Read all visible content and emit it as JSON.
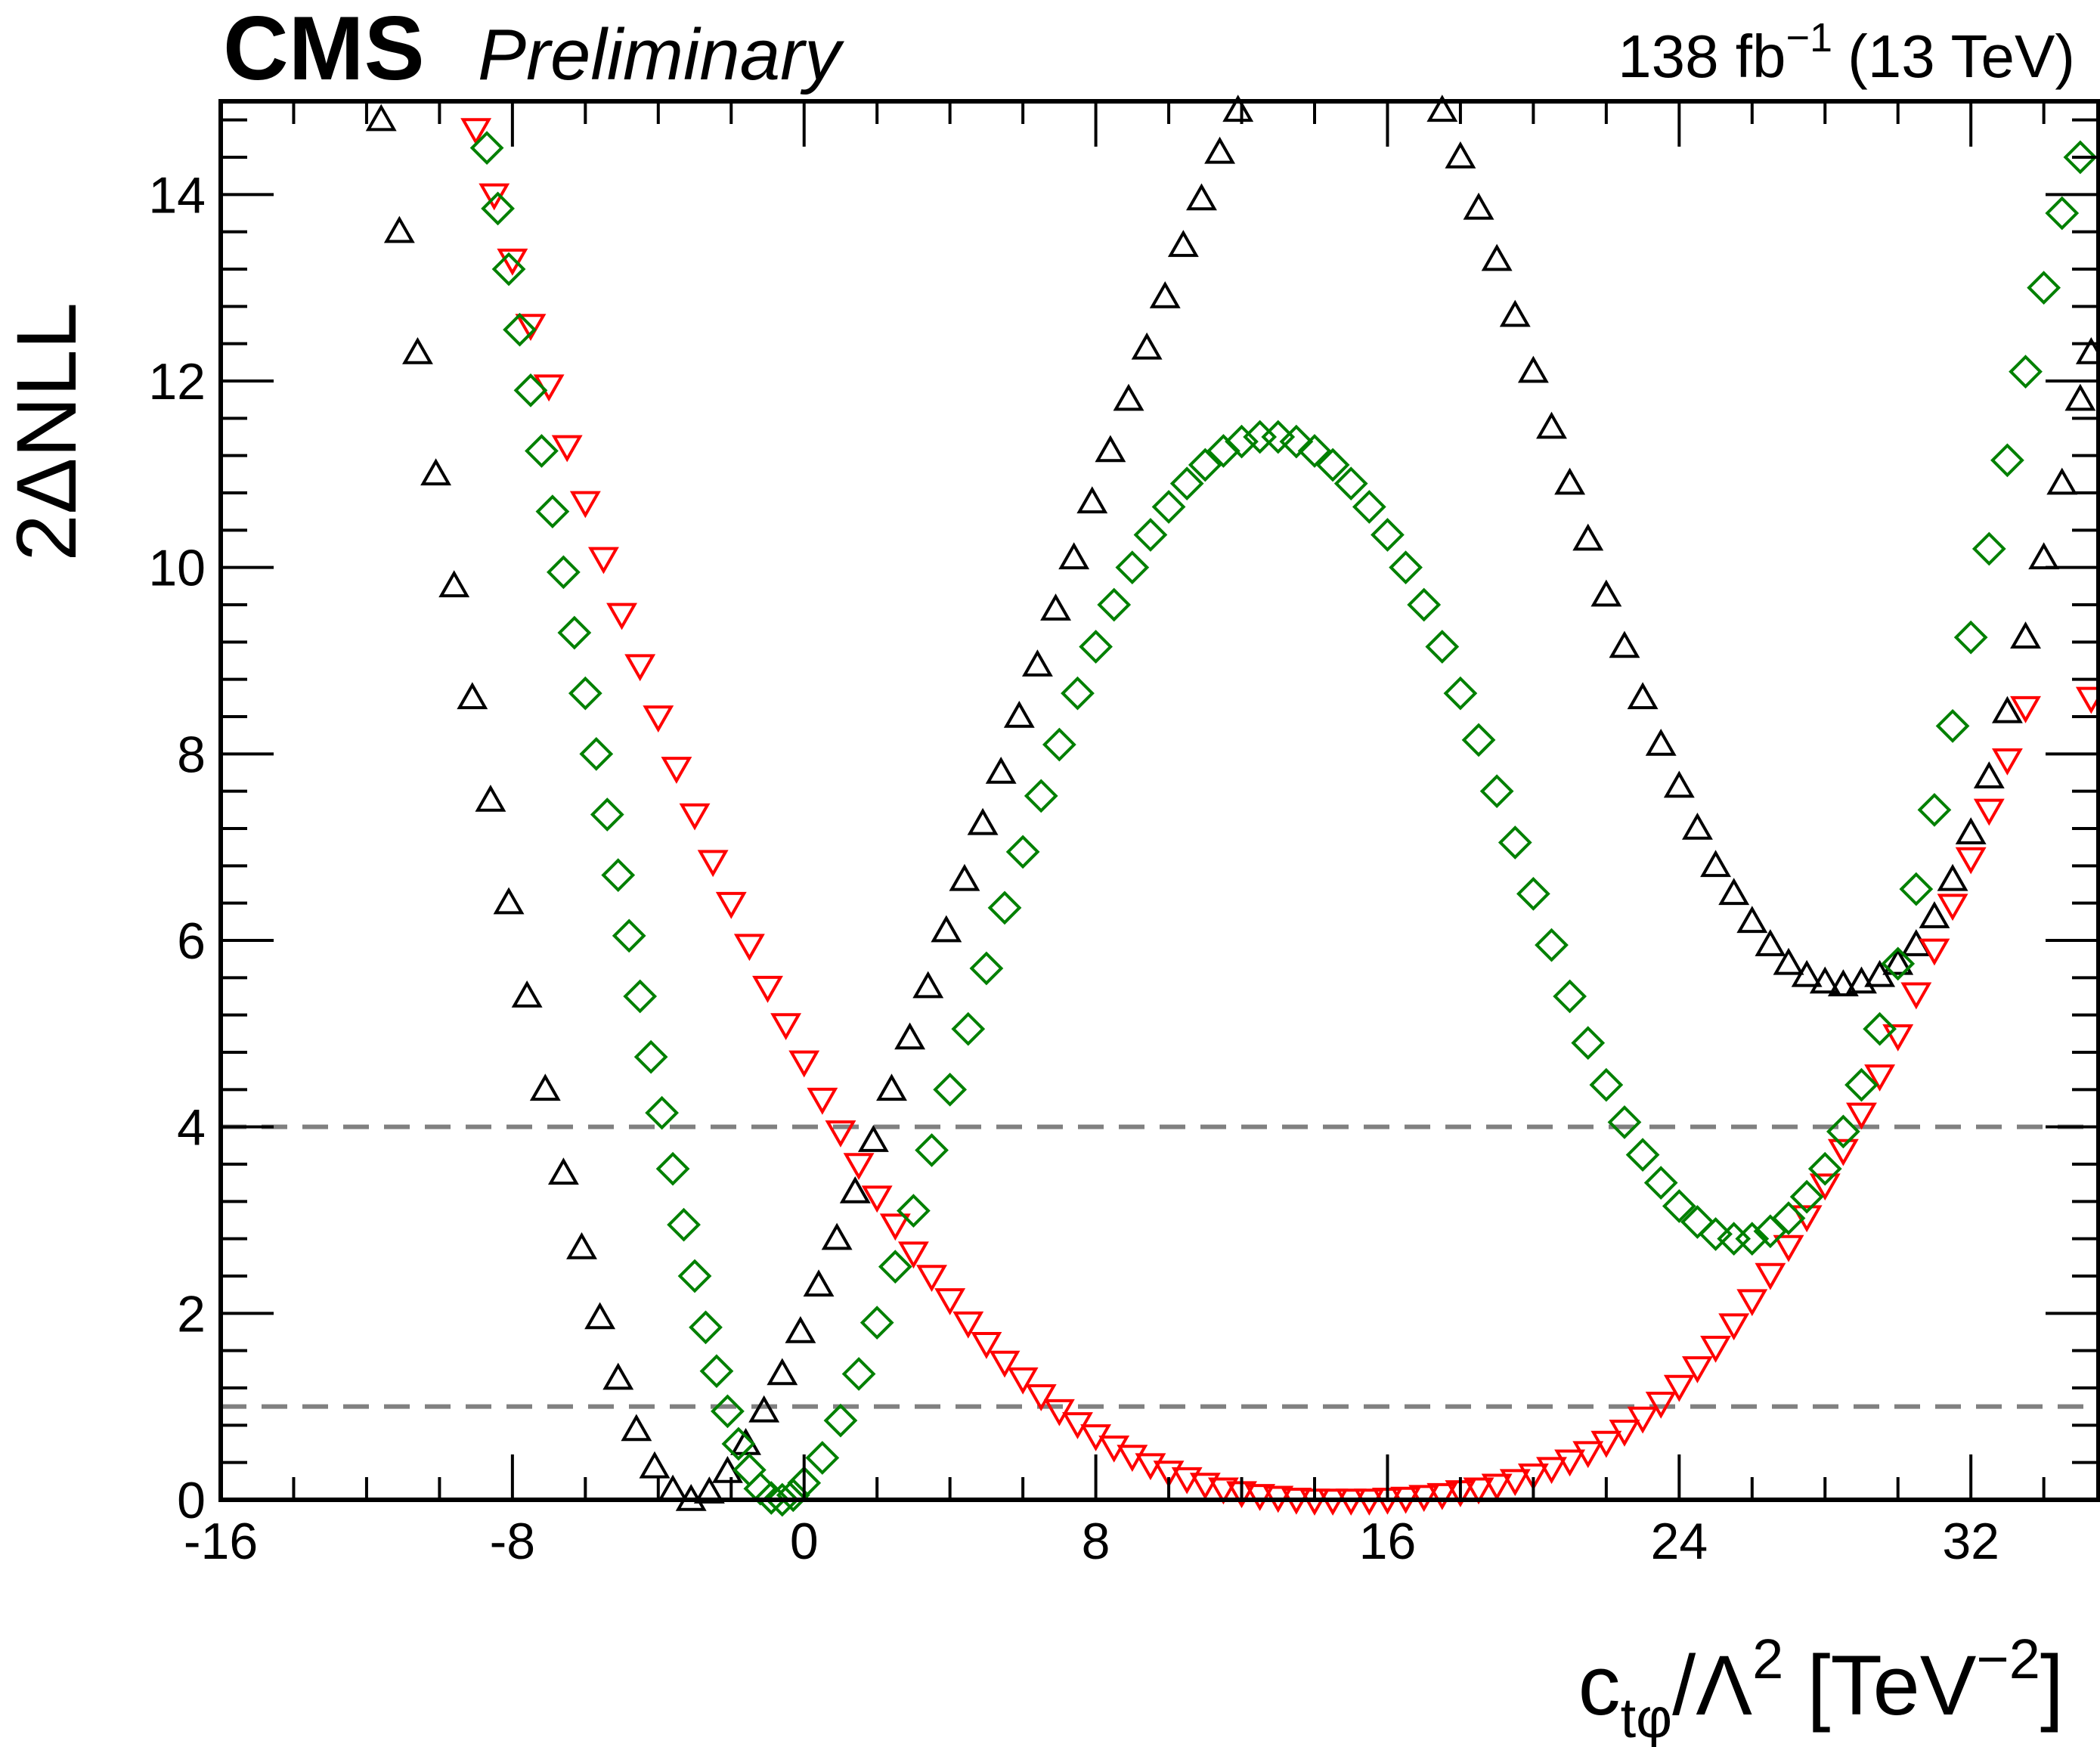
{
  "header": {
    "experiment": "CMS",
    "status": "Preliminary",
    "lumi_value": "138 fb",
    "lumi_exp": "−1",
    "energy": "(13 TeV)"
  },
  "axes": {
    "ylabel": "2ΔNLL",
    "xlabel_main": "c",
    "xlabel_sub": "tφ",
    "xlabel_mid": "/Λ",
    "xlabel_sq": "2",
    "xlabel_unit": " [TeV",
    "xlabel_unit_exp": "−2",
    "xlabel_close": "]"
  },
  "colors": {
    "black_series": "#000000",
    "red_series": "#ff0000",
    "green_series": "#008000",
    "threshold_line": "#808080"
  },
  "chart_data": {
    "type": "scatter",
    "title": "",
    "xlabel": "c_tφ/Λ² [TeV⁻²]",
    "ylabel": "2ΔNLL",
    "xlim": [
      -16,
      35.5
    ],
    "ylim": [
      0,
      15
    ],
    "x_ticks": [
      -16,
      -8,
      0,
      8,
      16,
      24,
      32
    ],
    "x_tick_labels": [
      "-16",
      "-8",
      "0",
      "8",
      "16",
      "24",
      "32"
    ],
    "y_ticks": [
      0,
      2,
      4,
      6,
      8,
      10,
      12,
      14
    ],
    "y_tick_labels": [
      "0",
      "2",
      "4",
      "6",
      "8",
      "10",
      "12",
      "14"
    ],
    "reference_lines": [
      1,
      4
    ],
    "series": [
      {
        "name": "black",
        "marker": "triangle-up",
        "color": "#000000",
        "points": [
          [
            -11.6,
            14.8
          ],
          [
            -11.1,
            13.6
          ],
          [
            -10.6,
            12.3
          ],
          [
            -10.1,
            11.0
          ],
          [
            -9.6,
            9.8
          ],
          [
            -9.1,
            8.6
          ],
          [
            -8.6,
            7.5
          ],
          [
            -8.1,
            6.4
          ],
          [
            -7.6,
            5.4
          ],
          [
            -7.1,
            4.4
          ],
          [
            -6.6,
            3.5
          ],
          [
            -6.1,
            2.7
          ],
          [
            -5.6,
            1.95
          ],
          [
            -5.1,
            1.3
          ],
          [
            -4.6,
            0.75
          ],
          [
            -4.1,
            0.35
          ],
          [
            -3.6,
            0.1
          ],
          [
            -3.1,
            0.0
          ],
          [
            -2.6,
            0.08
          ],
          [
            -2.1,
            0.3
          ],
          [
            -1.6,
            0.6
          ],
          [
            -1.1,
            0.95
          ],
          [
            -0.6,
            1.35
          ],
          [
            -0.1,
            1.8
          ],
          [
            0.4,
            2.3
          ],
          [
            0.9,
            2.8
          ],
          [
            1.4,
            3.3
          ],
          [
            1.9,
            3.85
          ],
          [
            2.4,
            4.4
          ],
          [
            2.9,
            4.95
          ],
          [
            3.4,
            5.5
          ],
          [
            3.9,
            6.1
          ],
          [
            4.4,
            6.65
          ],
          [
            4.9,
            7.25
          ],
          [
            5.4,
            7.8
          ],
          [
            5.9,
            8.4
          ],
          [
            6.4,
            8.95
          ],
          [
            6.9,
            9.55
          ],
          [
            7.4,
            10.1
          ],
          [
            7.9,
            10.7
          ],
          [
            8.4,
            11.25
          ],
          [
            8.9,
            11.8
          ],
          [
            9.4,
            12.35
          ],
          [
            9.9,
            12.9
          ],
          [
            10.4,
            13.45
          ],
          [
            10.9,
            13.95
          ],
          [
            11.4,
            14.45
          ],
          [
            11.9,
            14.9
          ],
          [
            17.5,
            14.9
          ],
          [
            18.0,
            14.4
          ],
          [
            18.5,
            13.85
          ],
          [
            19.0,
            13.3
          ],
          [
            19.5,
            12.7
          ],
          [
            20.0,
            12.1
          ],
          [
            20.5,
            11.5
          ],
          [
            21.0,
            10.9
          ],
          [
            21.5,
            10.3
          ],
          [
            22.0,
            9.7
          ],
          [
            22.5,
            9.15
          ],
          [
            23.0,
            8.6
          ],
          [
            23.5,
            8.1
          ],
          [
            24.0,
            7.65
          ],
          [
            24.5,
            7.2
          ],
          [
            25.0,
            6.8
          ],
          [
            25.5,
            6.5
          ],
          [
            26.0,
            6.2
          ],
          [
            26.5,
            5.95
          ],
          [
            27.0,
            5.75
          ],
          [
            27.5,
            5.62
          ],
          [
            28.0,
            5.55
          ],
          [
            28.5,
            5.52
          ],
          [
            29.0,
            5.55
          ],
          [
            29.5,
            5.62
          ],
          [
            30.0,
            5.75
          ],
          [
            30.5,
            5.95
          ],
          [
            31.0,
            6.25
          ],
          [
            31.5,
            6.65
          ],
          [
            32.0,
            7.15
          ],
          [
            32.5,
            7.75
          ],
          [
            33.0,
            8.45
          ],
          [
            33.5,
            9.25
          ],
          [
            34.0,
            10.1
          ],
          [
            34.5,
            10.9
          ],
          [
            35.0,
            11.8
          ],
          [
            35.3,
            12.3
          ]
        ]
      },
      {
        "name": "red",
        "marker": "triangle-down",
        "color": "#ff0000",
        "points": [
          [
            -9.0,
            14.7
          ],
          [
            -8.5,
            14.0
          ],
          [
            -8.0,
            13.3
          ],
          [
            -7.5,
            12.6
          ],
          [
            -7.0,
            11.95
          ],
          [
            -6.5,
            11.3
          ],
          [
            -6.0,
            10.7
          ],
          [
            -5.5,
            10.1
          ],
          [
            -5.0,
            9.5
          ],
          [
            -4.5,
            8.95
          ],
          [
            -4.0,
            8.4
          ],
          [
            -3.5,
            7.85
          ],
          [
            -3.0,
            7.35
          ],
          [
            -2.5,
            6.85
          ],
          [
            -2.0,
            6.4
          ],
          [
            -1.5,
            5.95
          ],
          [
            -1.0,
            5.5
          ],
          [
            -0.5,
            5.1
          ],
          [
            0.0,
            4.7
          ],
          [
            0.5,
            4.3
          ],
          [
            1.0,
            3.95
          ],
          [
            1.5,
            3.6
          ],
          [
            2.0,
            3.25
          ],
          [
            2.5,
            2.95
          ],
          [
            3.0,
            2.65
          ],
          [
            3.5,
            2.4
          ],
          [
            4.0,
            2.15
          ],
          [
            4.5,
            1.9
          ],
          [
            5.0,
            1.68
          ],
          [
            5.5,
            1.48
          ],
          [
            6.0,
            1.3
          ],
          [
            6.5,
            1.12
          ],
          [
            7.0,
            0.96
          ],
          [
            7.5,
            0.82
          ],
          [
            8.0,
            0.69
          ],
          [
            8.5,
            0.57
          ],
          [
            9.0,
            0.47
          ],
          [
            9.5,
            0.38
          ],
          [
            10.0,
            0.3
          ],
          [
            10.5,
            0.23
          ],
          [
            11.0,
            0.17
          ],
          [
            11.5,
            0.12
          ],
          [
            12.0,
            0.08
          ],
          [
            12.5,
            0.05
          ],
          [
            13.0,
            0.03
          ],
          [
            13.5,
            0.01
          ],
          [
            14.0,
            0.0
          ],
          [
            14.5,
            0.0
          ],
          [
            15.0,
            0.0
          ],
          [
            15.5,
            0.0
          ],
          [
            16.0,
            0.01
          ],
          [
            16.5,
            0.02
          ],
          [
            17.0,
            0.04
          ],
          [
            17.5,
            0.06
          ],
          [
            18.0,
            0.09
          ],
          [
            18.5,
            0.12
          ],
          [
            19.0,
            0.16
          ],
          [
            19.5,
            0.21
          ],
          [
            20.0,
            0.27
          ],
          [
            20.5,
            0.34
          ],
          [
            21.0,
            0.42
          ],
          [
            21.5,
            0.51
          ],
          [
            22.0,
            0.62
          ],
          [
            22.5,
            0.74
          ],
          [
            23.0,
            0.88
          ],
          [
            23.5,
            1.04
          ],
          [
            24.0,
            1.22
          ],
          [
            24.5,
            1.42
          ],
          [
            25.0,
            1.64
          ],
          [
            25.5,
            1.88
          ],
          [
            26.0,
            2.14
          ],
          [
            26.5,
            2.42
          ],
          [
            27.0,
            2.72
          ],
          [
            27.5,
            3.04
          ],
          [
            28.0,
            3.38
          ],
          [
            28.5,
            3.75
          ],
          [
            29.0,
            4.14
          ],
          [
            29.5,
            4.55
          ],
          [
            30.0,
            4.98
          ],
          [
            30.5,
            5.43
          ],
          [
            31.0,
            5.9
          ],
          [
            31.5,
            6.38
          ],
          [
            32.0,
            6.88
          ],
          [
            32.5,
            7.4
          ],
          [
            33.0,
            7.94
          ],
          [
            33.5,
            8.5
          ],
          [
            35.3,
            8.6
          ]
        ]
      },
      {
        "name": "green",
        "marker": "diamond",
        "color": "#008000",
        "points": [
          [
            -8.7,
            14.5
          ],
          [
            -8.4,
            13.85
          ],
          [
            -8.1,
            13.2
          ],
          [
            -7.8,
            12.55
          ],
          [
            -7.5,
            11.9
          ],
          [
            -7.2,
            11.25
          ],
          [
            -6.9,
            10.6
          ],
          [
            -6.6,
            9.95
          ],
          [
            -6.3,
            9.3
          ],
          [
            -6.0,
            8.65
          ],
          [
            -5.7,
            8.0
          ],
          [
            -5.4,
            7.35
          ],
          [
            -5.1,
            6.7
          ],
          [
            -4.8,
            6.05
          ],
          [
            -4.5,
            5.4
          ],
          [
            -4.2,
            4.75
          ],
          [
            -3.9,
            4.15
          ],
          [
            -3.6,
            3.55
          ],
          [
            -3.3,
            2.95
          ],
          [
            -3.0,
            2.4
          ],
          [
            -2.7,
            1.85
          ],
          [
            -2.4,
            1.38
          ],
          [
            -2.1,
            0.95
          ],
          [
            -1.8,
            0.6
          ],
          [
            -1.5,
            0.32
          ],
          [
            -1.2,
            0.12
          ],
          [
            -0.9,
            0.02
          ],
          [
            -0.6,
            0.0
          ],
          [
            -0.3,
            0.05
          ],
          [
            0.0,
            0.18
          ],
          [
            0.5,
            0.45
          ],
          [
            1.0,
            0.85
          ],
          [
            1.5,
            1.35
          ],
          [
            2.0,
            1.9
          ],
          [
            2.5,
            2.5
          ],
          [
            3.0,
            3.1
          ],
          [
            3.5,
            3.75
          ],
          [
            4.0,
            4.4
          ],
          [
            4.5,
            5.05
          ],
          [
            5.0,
            5.7
          ],
          [
            5.5,
            6.35
          ],
          [
            6.0,
            6.95
          ],
          [
            6.5,
            7.55
          ],
          [
            7.0,
            8.1
          ],
          [
            7.5,
            8.65
          ],
          [
            8.0,
            9.15
          ],
          [
            8.5,
            9.6
          ],
          [
            9.0,
            10.0
          ],
          [
            9.5,
            10.35
          ],
          [
            10.0,
            10.65
          ],
          [
            10.5,
            10.9
          ],
          [
            11.0,
            11.1
          ],
          [
            11.5,
            11.25
          ],
          [
            12.0,
            11.35
          ],
          [
            12.5,
            11.4
          ],
          [
            13.0,
            11.4
          ],
          [
            13.5,
            11.35
          ],
          [
            14.0,
            11.25
          ],
          [
            14.5,
            11.1
          ],
          [
            15.0,
            10.9
          ],
          [
            15.5,
            10.65
          ],
          [
            16.0,
            10.35
          ],
          [
            16.5,
            10.0
          ],
          [
            17.0,
            9.6
          ],
          [
            17.5,
            9.15
          ],
          [
            18.0,
            8.65
          ],
          [
            18.5,
            8.15
          ],
          [
            19.0,
            7.6
          ],
          [
            19.5,
            7.05
          ],
          [
            20.0,
            6.5
          ],
          [
            20.5,
            5.95
          ],
          [
            21.0,
            5.4
          ],
          [
            21.5,
            4.9
          ],
          [
            22.0,
            4.45
          ],
          [
            22.5,
            4.05
          ],
          [
            23.0,
            3.7
          ],
          [
            23.5,
            3.4
          ],
          [
            24.0,
            3.15
          ],
          [
            24.5,
            2.98
          ],
          [
            25.0,
            2.85
          ],
          [
            25.5,
            2.8
          ],
          [
            26.0,
            2.8
          ],
          [
            26.5,
            2.88
          ],
          [
            27.0,
            3.02
          ],
          [
            27.5,
            3.25
          ],
          [
            28.0,
            3.55
          ],
          [
            28.5,
            3.95
          ],
          [
            29.0,
            4.45
          ],
          [
            29.5,
            5.05
          ],
          [
            30.0,
            5.75
          ],
          [
            30.5,
            6.55
          ],
          [
            31.0,
            7.4
          ],
          [
            31.5,
            8.3
          ],
          [
            32.0,
            9.25
          ],
          [
            32.5,
            10.2
          ],
          [
            33.0,
            11.15
          ],
          [
            33.5,
            12.1
          ],
          [
            34.0,
            13.0
          ],
          [
            34.5,
            13.8
          ],
          [
            35.0,
            14.4
          ]
        ]
      }
    ]
  }
}
